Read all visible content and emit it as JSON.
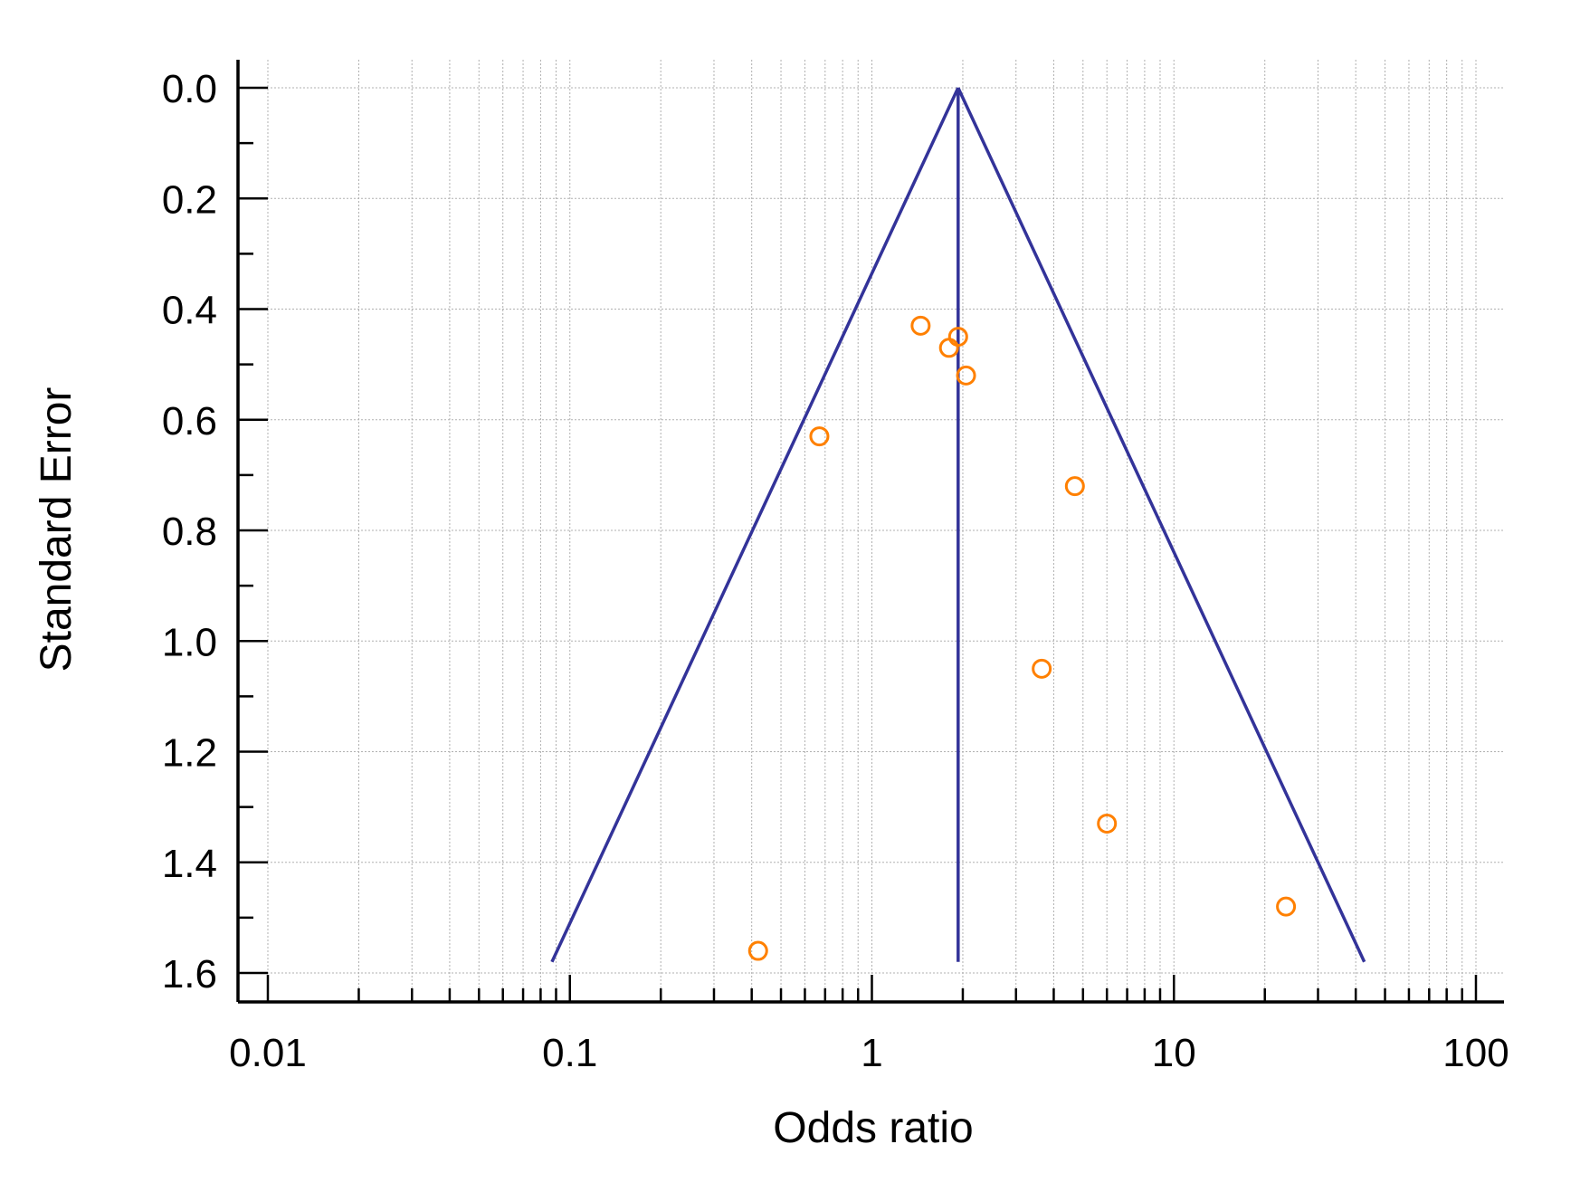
{
  "chart_data": {
    "type": "scatter",
    "title": "",
    "xlabel": "Odds ratio",
    "ylabel": "Standard Error",
    "x_scale": "log",
    "xlim": [
      0.01,
      100
    ],
    "ylim": [
      0,
      1.6
    ],
    "y_inverted": true,
    "x_ticks": [
      0.01,
      0.1,
      1,
      10,
      100
    ],
    "x_tick_labels": [
      "0.01",
      "0.1",
      "1",
      "10",
      "100"
    ],
    "y_ticks": [
      0.0,
      0.2,
      0.4,
      0.6,
      0.8,
      1.0,
      1.2,
      1.4,
      1.6
    ],
    "y_tick_labels": [
      "0.0",
      "0.2",
      "0.4",
      "0.6",
      "0.8",
      "1.0",
      "1.2",
      "1.4",
      "1.6"
    ],
    "grid": true,
    "pooled_odds_ratio": 1.93,
    "funnel_se_max": 1.58,
    "colors": {
      "points": "#FF8000",
      "funnel": "#333399",
      "grid": "#b0b0b0",
      "axis": "#000000"
    },
    "points": [
      {
        "x": 1.45,
        "y": 0.43
      },
      {
        "x": 1.93,
        "y": 0.45
      },
      {
        "x": 1.8,
        "y": 0.47
      },
      {
        "x": 2.05,
        "y": 0.52
      },
      {
        "x": 0.67,
        "y": 0.63
      },
      {
        "x": 4.7,
        "y": 0.72
      },
      {
        "x": 3.65,
        "y": 1.05
      },
      {
        "x": 6.0,
        "y": 1.33
      },
      {
        "x": 23.5,
        "y": 1.48
      },
      {
        "x": 0.42,
        "y": 1.56
      }
    ]
  }
}
